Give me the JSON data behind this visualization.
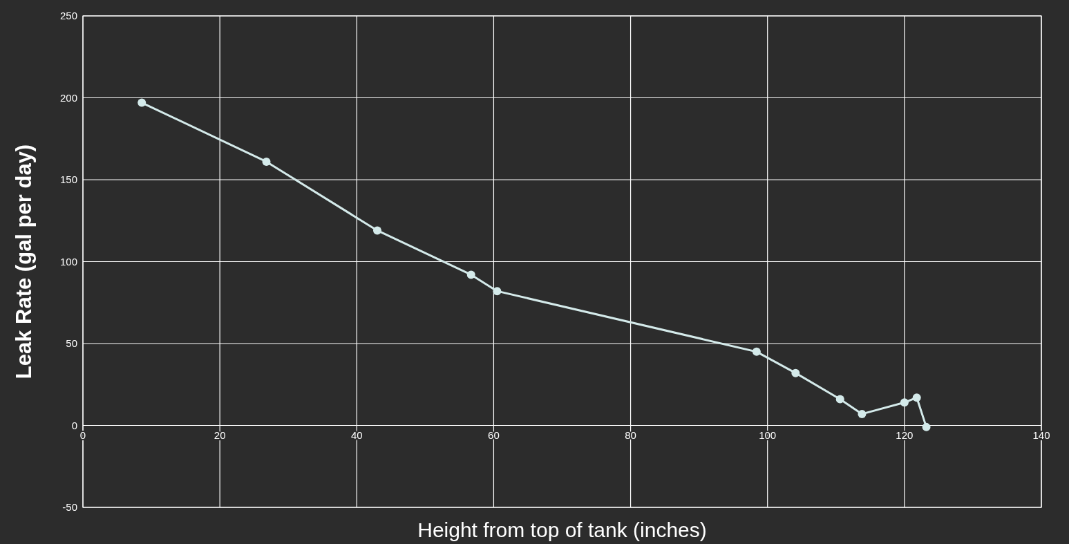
{
  "chart_data": {
    "type": "line",
    "xlabel": "Height from top of tank (inches)",
    "ylabel": "Leak Rate (gal per day)",
    "x": [
      8.6,
      26.8,
      43.0,
      56.7,
      60.5,
      98.4,
      104.1,
      110.6,
      113.8,
      120.0,
      121.8,
      123.2
    ],
    "series": [
      {
        "color": "#d4eaea",
        "values": [
          197,
          161,
          119,
          92,
          82,
          45,
          32,
          16,
          7,
          14,
          17,
          -1
        ]
      }
    ],
    "xlim": [
      0,
      140
    ],
    "xticks": [
      0,
      20,
      40,
      60,
      80,
      100,
      120,
      140
    ],
    "ylim": [
      -50,
      250
    ],
    "yticks": [
      -50,
      0,
      50,
      100,
      150,
      200,
      250
    ],
    "grid": true,
    "marker": "circle",
    "line_style": "solid"
  }
}
